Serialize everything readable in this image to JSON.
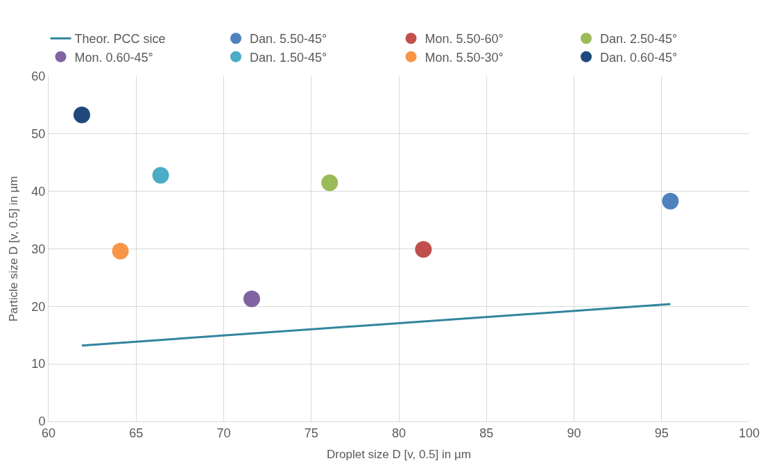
{
  "chart_data": {
    "type": "scatter",
    "xlabel": "Droplet size D [v, 0.5] in µm",
    "ylabel": "Particle size D [v, 0.5] in µm",
    "series": [
      {
        "name": "Theor. PCC sice",
        "type": "line",
        "color": "#31859c",
        "x": [
          61.9,
          95.5
        ],
        "values": [
          13.2,
          20.4
        ],
        "marker": "none"
      },
      {
        "name": "Dan. 5.50-45°",
        "color": "#4f81bd",
        "x": [
          95.5
        ],
        "values": [
          38.3
        ]
      },
      {
        "name": "Mon. 5.50-60°",
        "color": "#c0504d",
        "x": [
          81.4
        ],
        "values": [
          29.9
        ]
      },
      {
        "name": "Dan. 2.50-45°",
        "color": "#9bbb59",
        "x": [
          76.05
        ],
        "values": [
          41.5
        ]
      },
      {
        "name": "Mon. 0.60-45°",
        "color": "#8064a2",
        "x": [
          71.6
        ],
        "values": [
          21.3
        ]
      },
      {
        "name": "Dan. 1.50-45°",
        "color": "#4bacc6",
        "x": [
          66.4
        ],
        "values": [
          42.8
        ]
      },
      {
        "name": "Mon. 5.50-30°",
        "color": "#f79646",
        "x": [
          64.1
        ],
        "values": [
          29.6
        ]
      },
      {
        "name": "Dan. 0.60-45°",
        "color": "#1f497d",
        "x": [
          61.9
        ],
        "values": [
          53.3
        ]
      }
    ],
    "marker": "circle",
    "xlim": [
      60,
      100
    ],
    "xticks": [
      60,
      65,
      70,
      75,
      80,
      85,
      90,
      95,
      100
    ],
    "ylim": [
      0,
      60
    ],
    "yticks": [
      0,
      10,
      20,
      30,
      40,
      50,
      60
    ],
    "grid": true,
    "legend": "top"
  }
}
